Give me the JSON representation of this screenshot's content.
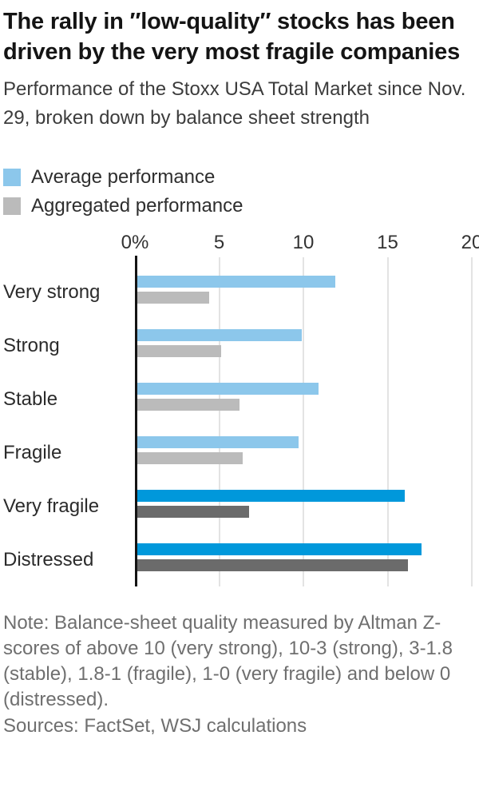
{
  "header": {
    "title": "The rally in ″low-quality″ stocks has been driven by the very most fragile companies",
    "subtitle": "Performance of the Stoxx USA Total Market since Nov. 29, broken down by balance sheet strength"
  },
  "chart_data": {
    "type": "bar",
    "orientation": "horizontal",
    "title": "The rally in ″low-quality″ stocks has been driven by the very most fragile companies",
    "subtitle": "Performance of the Stoxx USA Total Market since Nov. 29, broken down by balance sheet strength",
    "categories": [
      "Very strong",
      "Strong",
      "Stable",
      "Fragile",
      "Very fragile",
      "Distressed"
    ],
    "series": [
      {
        "name": "Average performance",
        "color": "#8CC7EB",
        "highlight_color": "#0098DB",
        "values": [
          11.9,
          9.9,
          10.9,
          9.7,
          16.0,
          17.0
        ]
      },
      {
        "name": "Aggregated performance",
        "color": "#BBBBBB",
        "highlight_color": "#6B6B6B",
        "values": [
          4.4,
          5.1,
          6.2,
          6.4,
          6.8,
          16.2
        ]
      }
    ],
    "highlighted_categories": [
      "Very fragile",
      "Distressed"
    ],
    "x_ticks": [
      {
        "label": "0%",
        "value": 0
      },
      {
        "label": "5",
        "value": 5
      },
      {
        "label": "10",
        "value": 10
      },
      {
        "label": "15",
        "value": 15
      },
      {
        "label": "20",
        "value": 20
      }
    ],
    "xlim": [
      0,
      20
    ],
    "unit": "percent",
    "grid": "vertical-gridlines",
    "legend_position": "top-left",
    "axis_color": "#141414",
    "gridline_color": "#E3E3E3"
  },
  "footer": {
    "note": "Note: Balance-sheet quality measured by Altman Z-scores of above 10 (very strong), 10-3 (strong), 3-1.8 (stable), 1.8-1 (fragile), 1-0 (very fragile) and below 0 (distressed).",
    "sources": "Sources: FactSet, WSJ calculations"
  }
}
